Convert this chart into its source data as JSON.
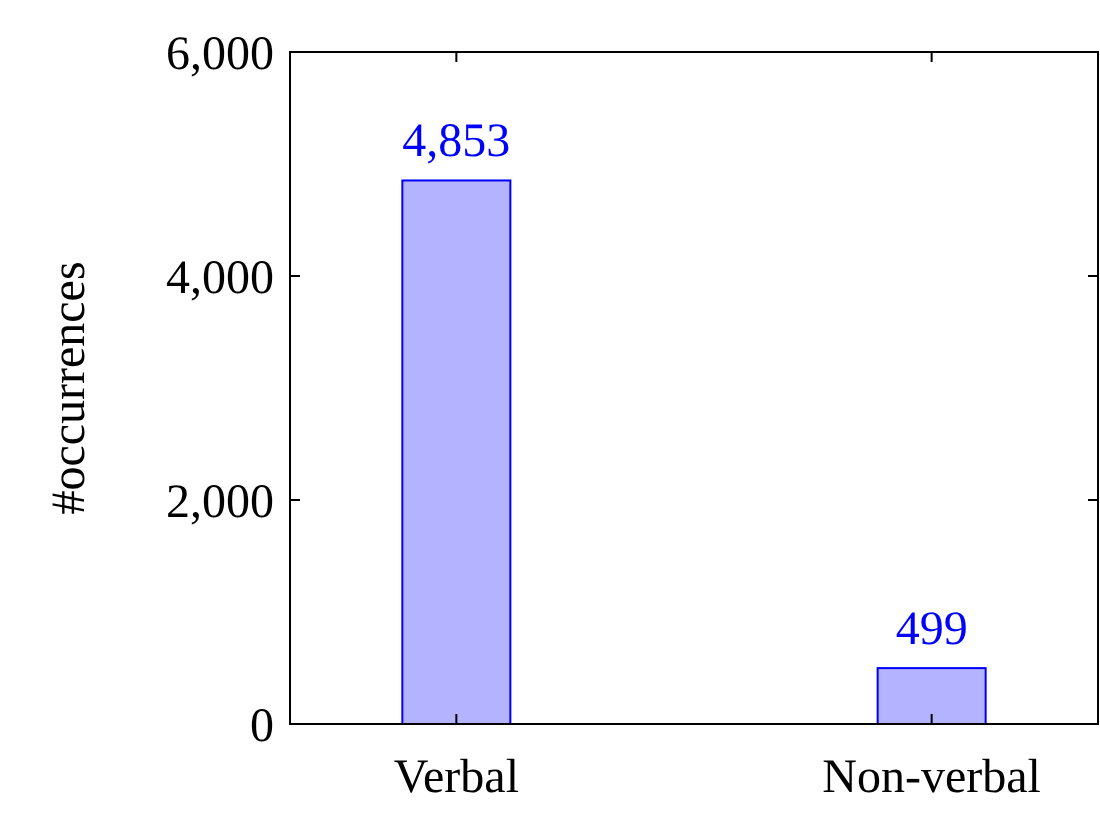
{
  "chart_data": {
    "type": "bar",
    "ylabel": "#occurrences",
    "categories": [
      "Verbal",
      "Non-verbal"
    ],
    "values": [
      4853,
      499
    ],
    "value_labels": [
      "4,853",
      "499"
    ],
    "color": "#b3b3ff",
    "ylim": [
      0,
      6000
    ],
    "yticks": [
      {
        "value": 0,
        "label": "0"
      },
      {
        "value": 2000,
        "label": "2,000"
      },
      {
        "value": 4000,
        "label": "4,000"
      },
      {
        "value": 6000,
        "label": "6,000"
      }
    ]
  }
}
